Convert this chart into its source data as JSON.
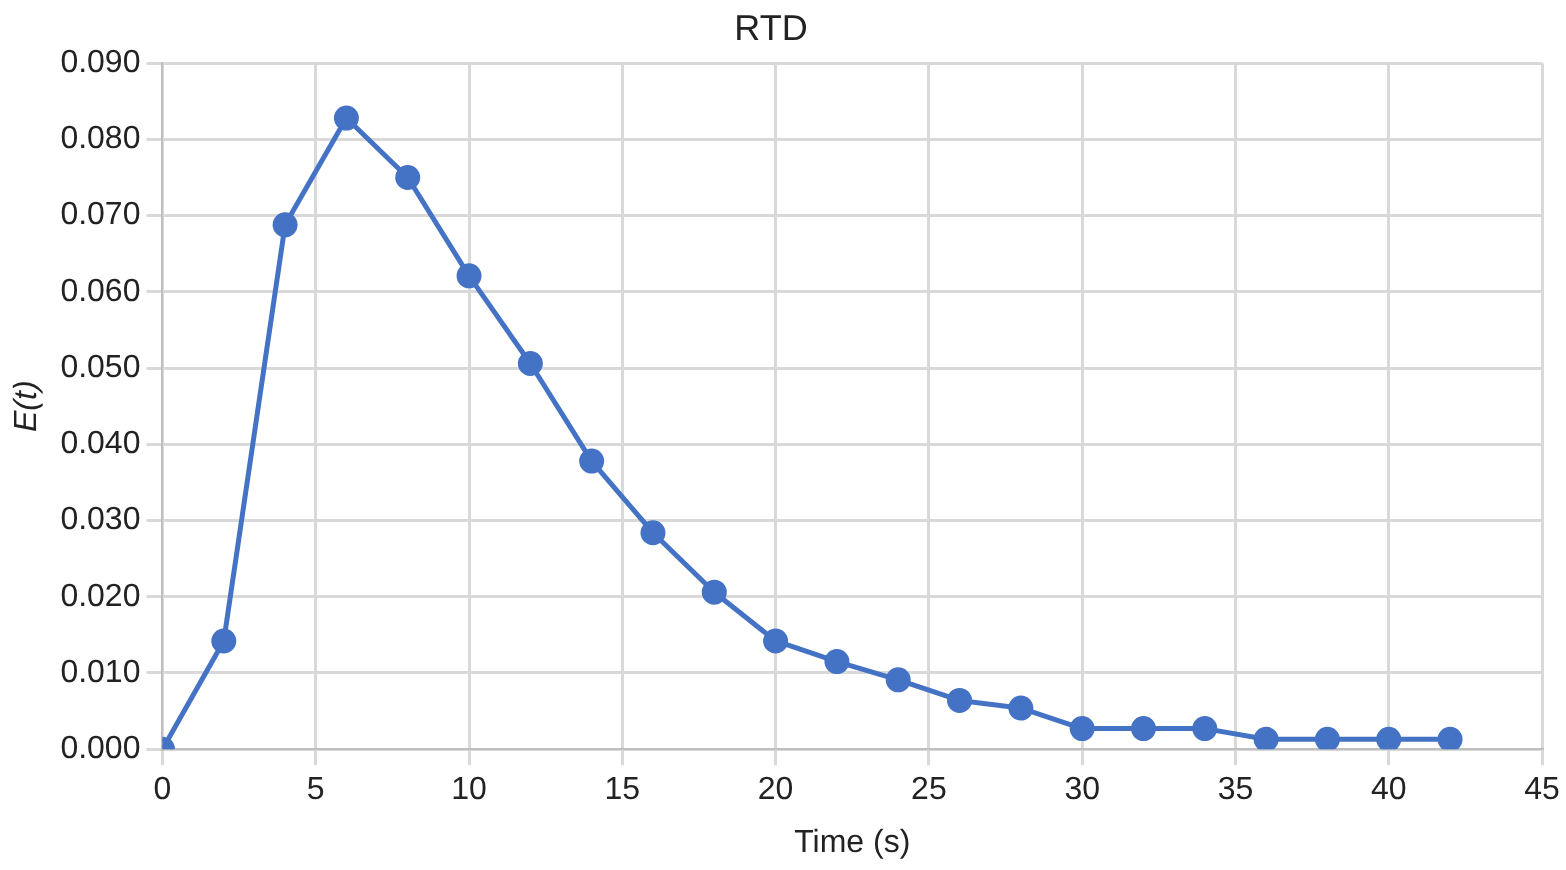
{
  "chart_data": {
    "type": "line",
    "title": "RTD",
    "xlabel": "Time (s)",
    "ylabel": "E(t)",
    "x": [
      0,
      2,
      4,
      6,
      8,
      10,
      12,
      14,
      16,
      18,
      20,
      22,
      24,
      26,
      28,
      30,
      32,
      34,
      36,
      38,
      40,
      42
    ],
    "series": [
      {
        "color": "#4472c4",
        "values": [
          0,
          0.0142,
          0.0688,
          0.0828,
          0.075,
          0.0621,
          0.0506,
          0.0378,
          0.0284,
          0.0206,
          0.0142,
          0.0115,
          0.0091,
          0.0064,
          0.0054,
          0.0027,
          0.0027,
          0.0027,
          0.0013,
          0.0013,
          0.0013,
          0.0013
        ]
      }
    ],
    "xlim": [
      0,
      45
    ],
    "xticks": [
      0,
      5,
      10,
      15,
      20,
      25,
      30,
      35,
      40,
      45
    ],
    "ylim": [
      0,
      0.09
    ],
    "yticks": [
      {
        "value": 0,
        "label": "0.000"
      },
      {
        "value": 0.01,
        "label": "0.010"
      },
      {
        "value": 0.02,
        "label": "0.020"
      },
      {
        "value": 0.03,
        "label": "0.030"
      },
      {
        "value": 0.04,
        "label": "0.040"
      },
      {
        "value": 0.05,
        "label": "0.050"
      },
      {
        "value": 0.06,
        "label": "0.060"
      },
      {
        "value": 0.07,
        "label": "0.070"
      },
      {
        "value": 0.08,
        "label": "0.080"
      },
      {
        "value": 0.09,
        "label": "0.090"
      }
    ],
    "grid": true,
    "legend": false,
    "marker": "circle",
    "line_style": "solid"
  }
}
